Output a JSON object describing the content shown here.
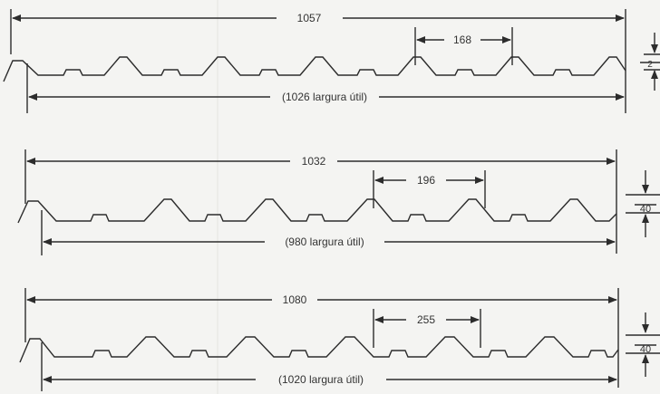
{
  "profiles": [
    {
      "total_width": "1057",
      "wave_pitch": "168",
      "height": "2",
      "useful_width": "(1026 largura útil)"
    },
    {
      "total_width": "1032",
      "wave_pitch": "196",
      "height": "40",
      "useful_width": "(980 largura útil)"
    },
    {
      "total_width": "1080",
      "wave_pitch": "255",
      "height": "40",
      "useful_width": "(1020 largura útil)"
    }
  ],
  "colors": {
    "line": "#2c2c2c",
    "background": "#f4f4f2"
  }
}
